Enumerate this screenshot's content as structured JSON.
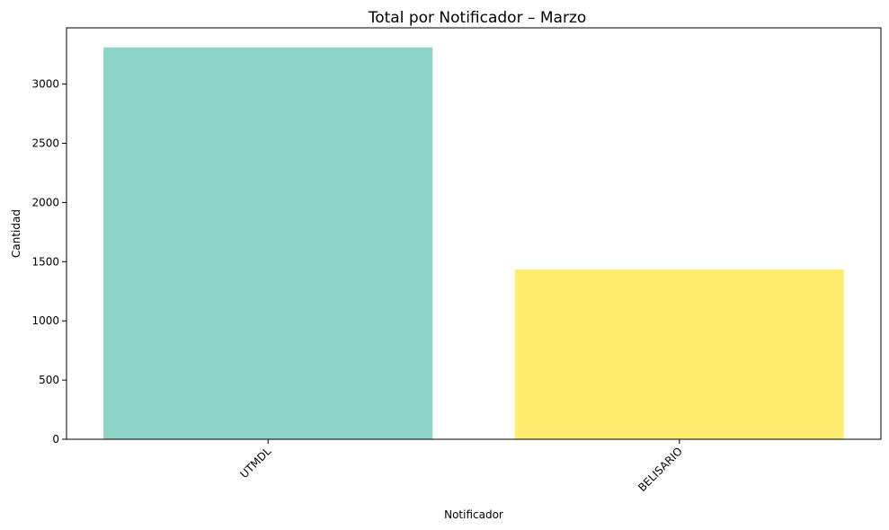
{
  "chart_data": {
    "type": "bar",
    "title": "Total por Notificador – Marzo",
    "xlabel": "Notificador",
    "ylabel": "Cantidad",
    "categories": [
      "UTMDL",
      "BELISARIO"
    ],
    "values": [
      3310,
      1435
    ],
    "bar_colors": [
      "#8dd3c7",
      "#ffed6f"
    ],
    "ylim": [
      0,
      3475
    ],
    "yticks": [
      0,
      500,
      1000,
      1500,
      2000,
      2500,
      3000
    ],
    "grid": false,
    "x_tick_rotation": "45 degrees"
  }
}
